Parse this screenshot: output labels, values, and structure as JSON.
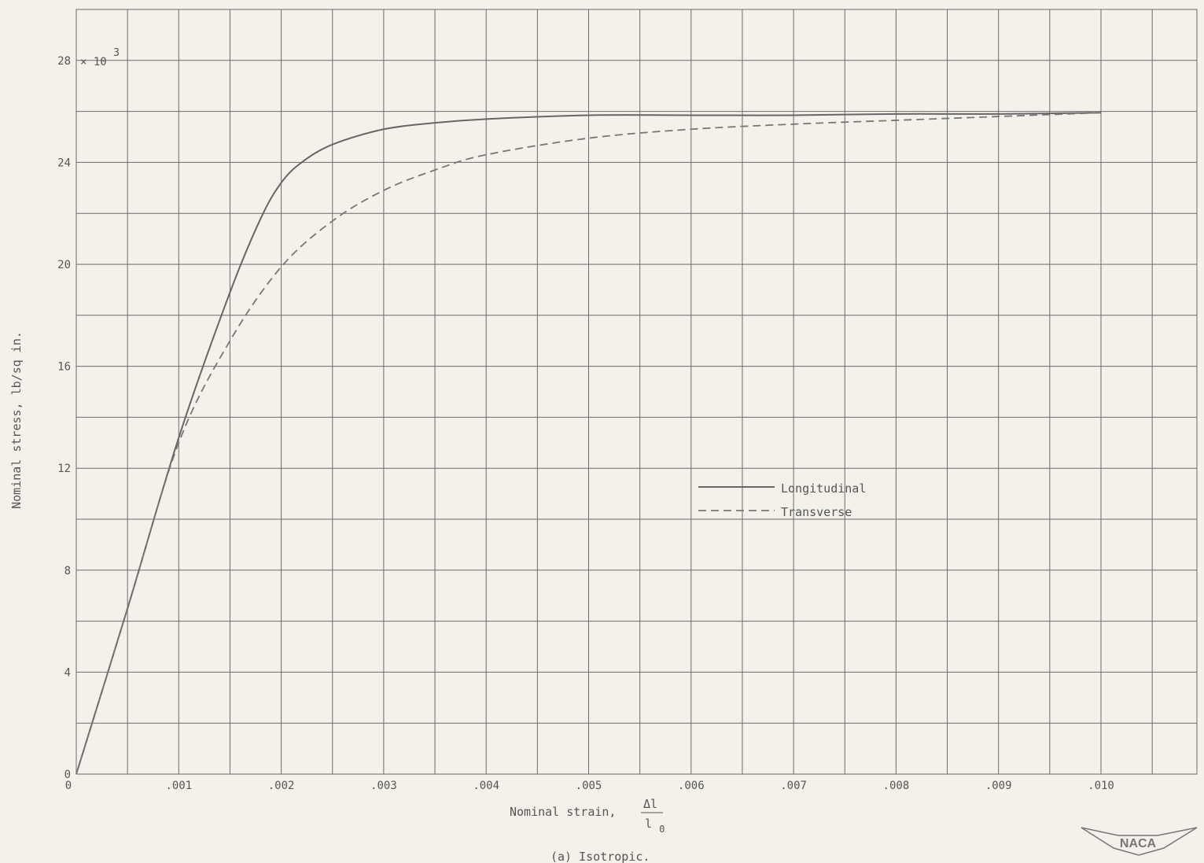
{
  "chart_data": {
    "type": "line",
    "xlabel": "Nominal strain,",
    "xlabel_fraction": {
      "numerator": "Δl",
      "denominator": "l",
      "denominator_subscript": "0"
    },
    "ylabel": "Nominal stress, lb/sq in.",
    "y_multiplier": {
      "base": "× 10",
      "exponent": "3"
    },
    "caption": "(a) Isotropic.",
    "logo": "NACA",
    "xlim": [
      0,
      0.011
    ],
    "ylim": [
      0,
      30
    ],
    "x_tick_values": [
      0,
      0.001,
      0.002,
      0.003,
      0.004,
      0.005,
      0.006,
      0.007,
      0.008,
      0.009,
      0.01
    ],
    "x_tick_labels": [
      "0",
      ".001",
      ".002",
      ".003",
      ".004",
      ".005",
      ".006",
      ".007",
      ".008",
      ".009",
      ".010"
    ],
    "y_tick_values": [
      0,
      4,
      8,
      12,
      16,
      20,
      24,
      28
    ],
    "y_tick_labels": [
      "0",
      "4",
      "8",
      "12",
      "16",
      "20",
      "24",
      "28"
    ],
    "grid": true,
    "legend_placement": "center-right",
    "series": [
      {
        "name": "Longitudinal",
        "style": "solid",
        "x": [
          0,
          0.0005,
          0.001,
          0.0015,
          0.0018,
          0.002,
          0.0022,
          0.0025,
          0.003,
          0.0035,
          0.004,
          0.005,
          0.006,
          0.007,
          0.008,
          0.009,
          0.01
        ],
        "y": [
          0,
          6.5,
          13.2,
          18.9,
          21.8,
          23.2,
          24.0,
          24.7,
          25.3,
          25.55,
          25.7,
          25.85,
          25.85,
          25.85,
          25.9,
          25.9,
          25.95
        ]
      },
      {
        "name": "Transverse",
        "style": "dashed",
        "x": [
          0,
          0.0005,
          0.001,
          0.0015,
          0.002,
          0.0025,
          0.003,
          0.0035,
          0.004,
          0.005,
          0.006,
          0.007,
          0.008,
          0.009,
          0.01
        ],
        "y": [
          0,
          6.5,
          13.0,
          17.0,
          19.9,
          21.7,
          22.9,
          23.7,
          24.3,
          24.95,
          25.3,
          25.5,
          25.65,
          25.8,
          25.95
        ]
      }
    ]
  }
}
